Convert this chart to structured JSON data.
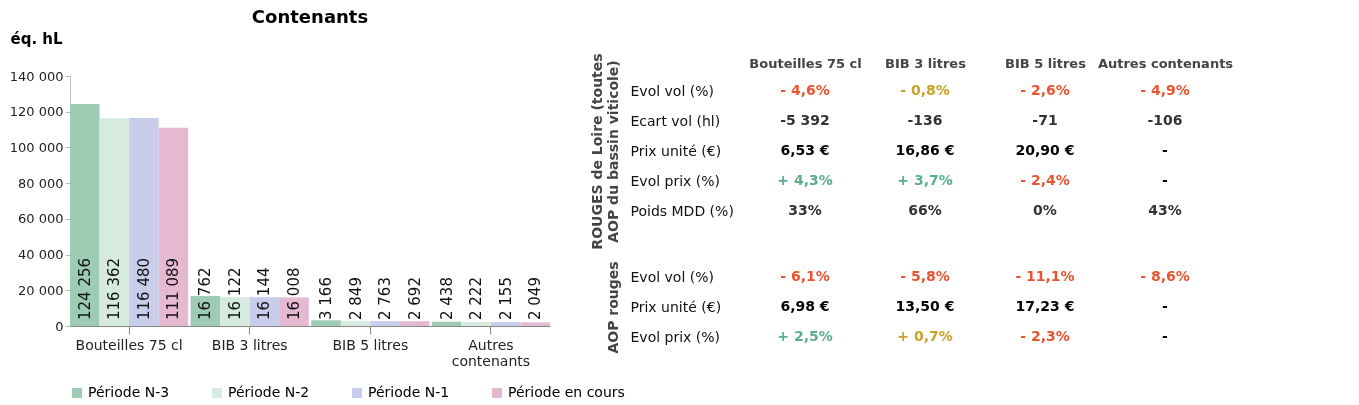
{
  "chart_data": [
    {
      "type": "bar",
      "title": "Contenants",
      "ylabel": "éq. hL",
      "categories": [
        "Bouteilles 75 cl",
        "BIB 3 litres",
        "BIB 5 litres",
        "Autres contenants"
      ],
      "series": [
        {
          "name": "Période N-3",
          "color": "#9ecbb4",
          "values": [
            124256,
            16762,
            3166,
            2438
          ],
          "value_labels": [
            "124 256",
            "16 762",
            "3 166",
            "2 438"
          ]
        },
        {
          "name": "Période N-2",
          "color": "#d6eadf",
          "values": [
            116362,
            16122,
            2849,
            2222
          ],
          "value_labels": [
            "116 362",
            "16 122",
            "2 849",
            "2 222"
          ]
        },
        {
          "name": "Période N-1",
          "color": "#c8cdeb",
          "values": [
            116480,
            16144,
            2763,
            2155
          ],
          "value_labels": [
            "116 480",
            "16 144",
            "2 763",
            "2 155"
          ]
        },
        {
          "name": "Période en cours",
          "color": "#e5b9d2",
          "values": [
            111089,
            16008,
            2692,
            2049
          ],
          "value_labels": [
            "111 089",
            "16 008",
            "2 692",
            "2 049"
          ]
        }
      ],
      "ylim": [
        0,
        140000
      ],
      "yticks": [
        {
          "value": 0,
          "label": "0"
        },
        {
          "value": 20000,
          "label": "20 000"
        },
        {
          "value": 40000,
          "label": "40 000"
        },
        {
          "value": 60000,
          "label": "60 000"
        },
        {
          "value": 80000,
          "label": "80 000"
        },
        {
          "value": 100000,
          "label": "100 000"
        },
        {
          "value": 120000,
          "label": "120 000"
        },
        {
          "value": 140000,
          "label": "140 000"
        }
      ],
      "grid": false,
      "legend": "bottom"
    },
    {
      "type": "other",
      "ylabel": "ROUGES de Loire (toutes AOP du bassin viticole)",
      "categories": [
        "Bouteilles 75 cl",
        "BIB 3 litres",
        "BIB 5 litres",
        "Autres contenants"
      ],
      "y_categories": [
        "Evol vol (%)",
        "Ecart vol (hl)",
        "Prix unité (€)",
        "Evol prix (%)",
        "Poids MDD (%)"
      ],
      "cell_labels": [
        [
          "- 4,6%",
          "- 0,8%",
          "- 2,6%",
          "- 4,9%"
        ],
        [
          "-5 392",
          "-136",
          "-71",
          "-106"
        ],
        [
          "6,53 €",
          "16,86 €",
          "20,90 €",
          "-"
        ],
        [
          "+ 4,3%",
          "+ 3,7%",
          "- 2,4%",
          "-"
        ],
        [
          "33%",
          "66%",
          "0%",
          "43%"
        ]
      ],
      "colors": [
        [
          "#e8542f",
          "#c9a227",
          "#e8542f",
          "#e8542f"
        ],
        [
          "#333333",
          "#333333",
          "#333333",
          "#333333"
        ],
        [
          "#000000",
          "#000000",
          "#000000",
          "#000000"
        ],
        [
          "#5aaf8a",
          "#5aaf8a",
          "#e8542f",
          "#000000"
        ],
        [
          "#333333",
          "#333333",
          "#333333",
          "#333333"
        ]
      ]
    },
    {
      "type": "other",
      "ylabel": "AOP rouges",
      "y_categories": [
        "Evol vol (%)",
        "Prix unité (€)",
        "Evol prix (%)"
      ],
      "cell_labels": [
        [
          "- 6,1%",
          "- 5,8%",
          "- 11,1%",
          "- 8,6%"
        ],
        [
          "6,98 €",
          "13,50 €",
          "17,23 €",
          "-"
        ],
        [
          "+ 2,5%",
          "+ 0,7%",
          "- 2,3%",
          "-"
        ]
      ],
      "colors": [
        [
          "#e8542f",
          "#e8542f",
          "#e8542f",
          "#e8542f"
        ],
        [
          "#000000",
          "#000000",
          "#000000",
          "#000000"
        ],
        [
          "#5aaf8a",
          "#c9a227",
          "#e8542f",
          "#000000"
        ]
      ]
    }
  ]
}
